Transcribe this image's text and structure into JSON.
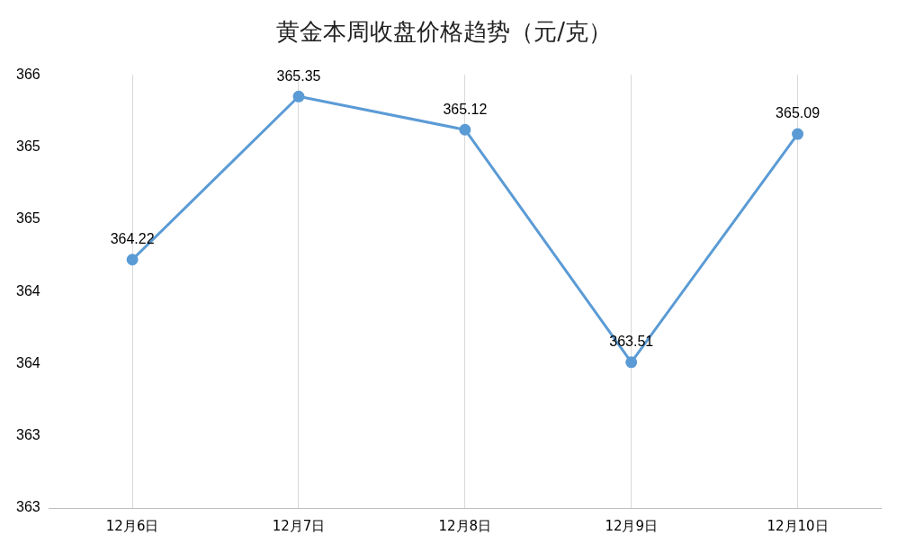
{
  "chart_data": {
    "type": "line",
    "title": "黄金本周收盘价格趋势（元/克）",
    "categories": [
      "12月6日",
      "12月7日",
      "12月8日",
      "12月9日",
      "12月10日"
    ],
    "series": [
      {
        "color": "#5b9bd5",
        "values": [
          364.22,
          365.35,
          365.12,
          363.51,
          365.09
        ]
      }
    ],
    "ylim": [
      362.5,
      365.5
    ],
    "yticks": [
      {
        "value": 362.5,
        "label": "363"
      },
      {
        "value": 363,
        "label": "363"
      },
      {
        "value": 363.5,
        "label": "364"
      },
      {
        "value": 364,
        "label": "364"
      },
      {
        "value": 364.5,
        "label": "365"
      },
      {
        "value": 365,
        "label": "365"
      },
      {
        "value": 365.5,
        "label": "366"
      }
    ],
    "grid": "x",
    "legend": false,
    "marker": "circle",
    "line_style": "solid",
    "data_labels": true
  }
}
